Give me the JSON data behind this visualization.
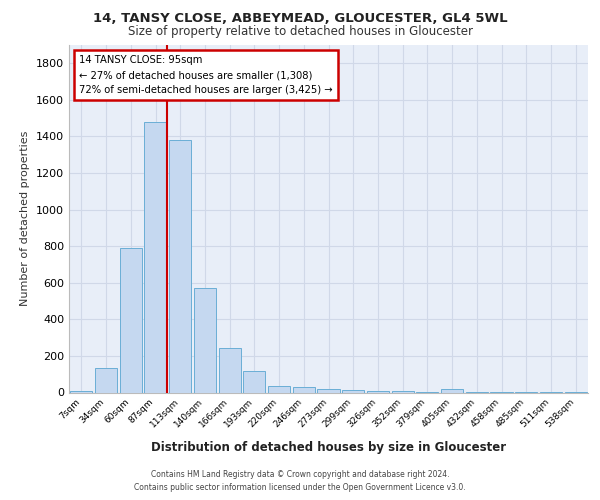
{
  "title1": "14, TANSY CLOSE, ABBEYMEAD, GLOUCESTER, GL4 5WL",
  "title2": "Size of property relative to detached houses in Gloucester",
  "xlabel": "Distribution of detached houses by size in Gloucester",
  "ylabel": "Number of detached properties",
  "categories": [
    "7sqm",
    "34sqm",
    "60sqm",
    "87sqm",
    "113sqm",
    "140sqm",
    "166sqm",
    "193sqm",
    "220sqm",
    "246sqm",
    "273sqm",
    "299sqm",
    "326sqm",
    "352sqm",
    "379sqm",
    "405sqm",
    "432sqm",
    "458sqm",
    "485sqm",
    "511sqm",
    "538sqm"
  ],
  "values": [
    10,
    135,
    790,
    1480,
    1380,
    570,
    245,
    115,
    38,
    28,
    20,
    15,
    10,
    8,
    5,
    20,
    3,
    2,
    2,
    2,
    1
  ],
  "bar_color": "#c5d8f0",
  "bar_edge_color": "#6aaed6",
  "red_line_bin_index": 3,
  "annotation_title": "14 TANSY CLOSE: 95sqm",
  "annotation_line1": "← 27% of detached houses are smaller (1,308)",
  "annotation_line2": "72% of semi-detached houses are larger (3,425) →",
  "annotation_box_color": "#ffffff",
  "annotation_box_edge": "#cc0000",
  "ylim": [
    0,
    1900
  ],
  "yticks": [
    0,
    200,
    400,
    600,
    800,
    1000,
    1200,
    1400,
    1600,
    1800
  ],
  "grid_color": "#d0d8e8",
  "background_color": "#e8eef8",
  "footer1": "Contains HM Land Registry data © Crown copyright and database right 2024.",
  "footer2": "Contains public sector information licensed under the Open Government Licence v3.0."
}
